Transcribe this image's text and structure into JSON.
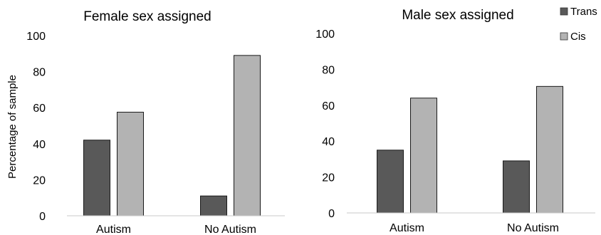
{
  "chart_data": [
    {
      "type": "bar",
      "title": "Female sex assigned",
      "ylabel": "Percentage of sample",
      "xlabel": "",
      "categories": [
        "Autism",
        "No Autism"
      ],
      "series": [
        {
          "name": "Trans",
          "values": [
            42,
            11
          ],
          "color": "#595959"
        },
        {
          "name": "Cis",
          "values": [
            57.5,
            89
          ],
          "color": "#b3b3b3"
        }
      ],
      "ylim": [
        0,
        100
      ],
      "yticks": [
        "0",
        "20",
        "40",
        "60",
        "80",
        "100"
      ],
      "grid": false,
      "legend": "none"
    },
    {
      "type": "bar",
      "title": "Male sex assigned",
      "ylabel": "",
      "xlabel": "",
      "categories": [
        "Autism",
        "No Autism"
      ],
      "series": [
        {
          "name": "Trans",
          "values": [
            35,
            29
          ],
          "color": "#595959"
        },
        {
          "name": "Cis",
          "values": [
            64,
            70.5
          ],
          "color": "#b3b3b3"
        }
      ],
      "ylim": [
        0,
        100
      ],
      "yticks": [
        "0",
        "20",
        "40",
        "60",
        "80",
        "100"
      ],
      "grid": false,
      "legend": "top-right"
    }
  ]
}
